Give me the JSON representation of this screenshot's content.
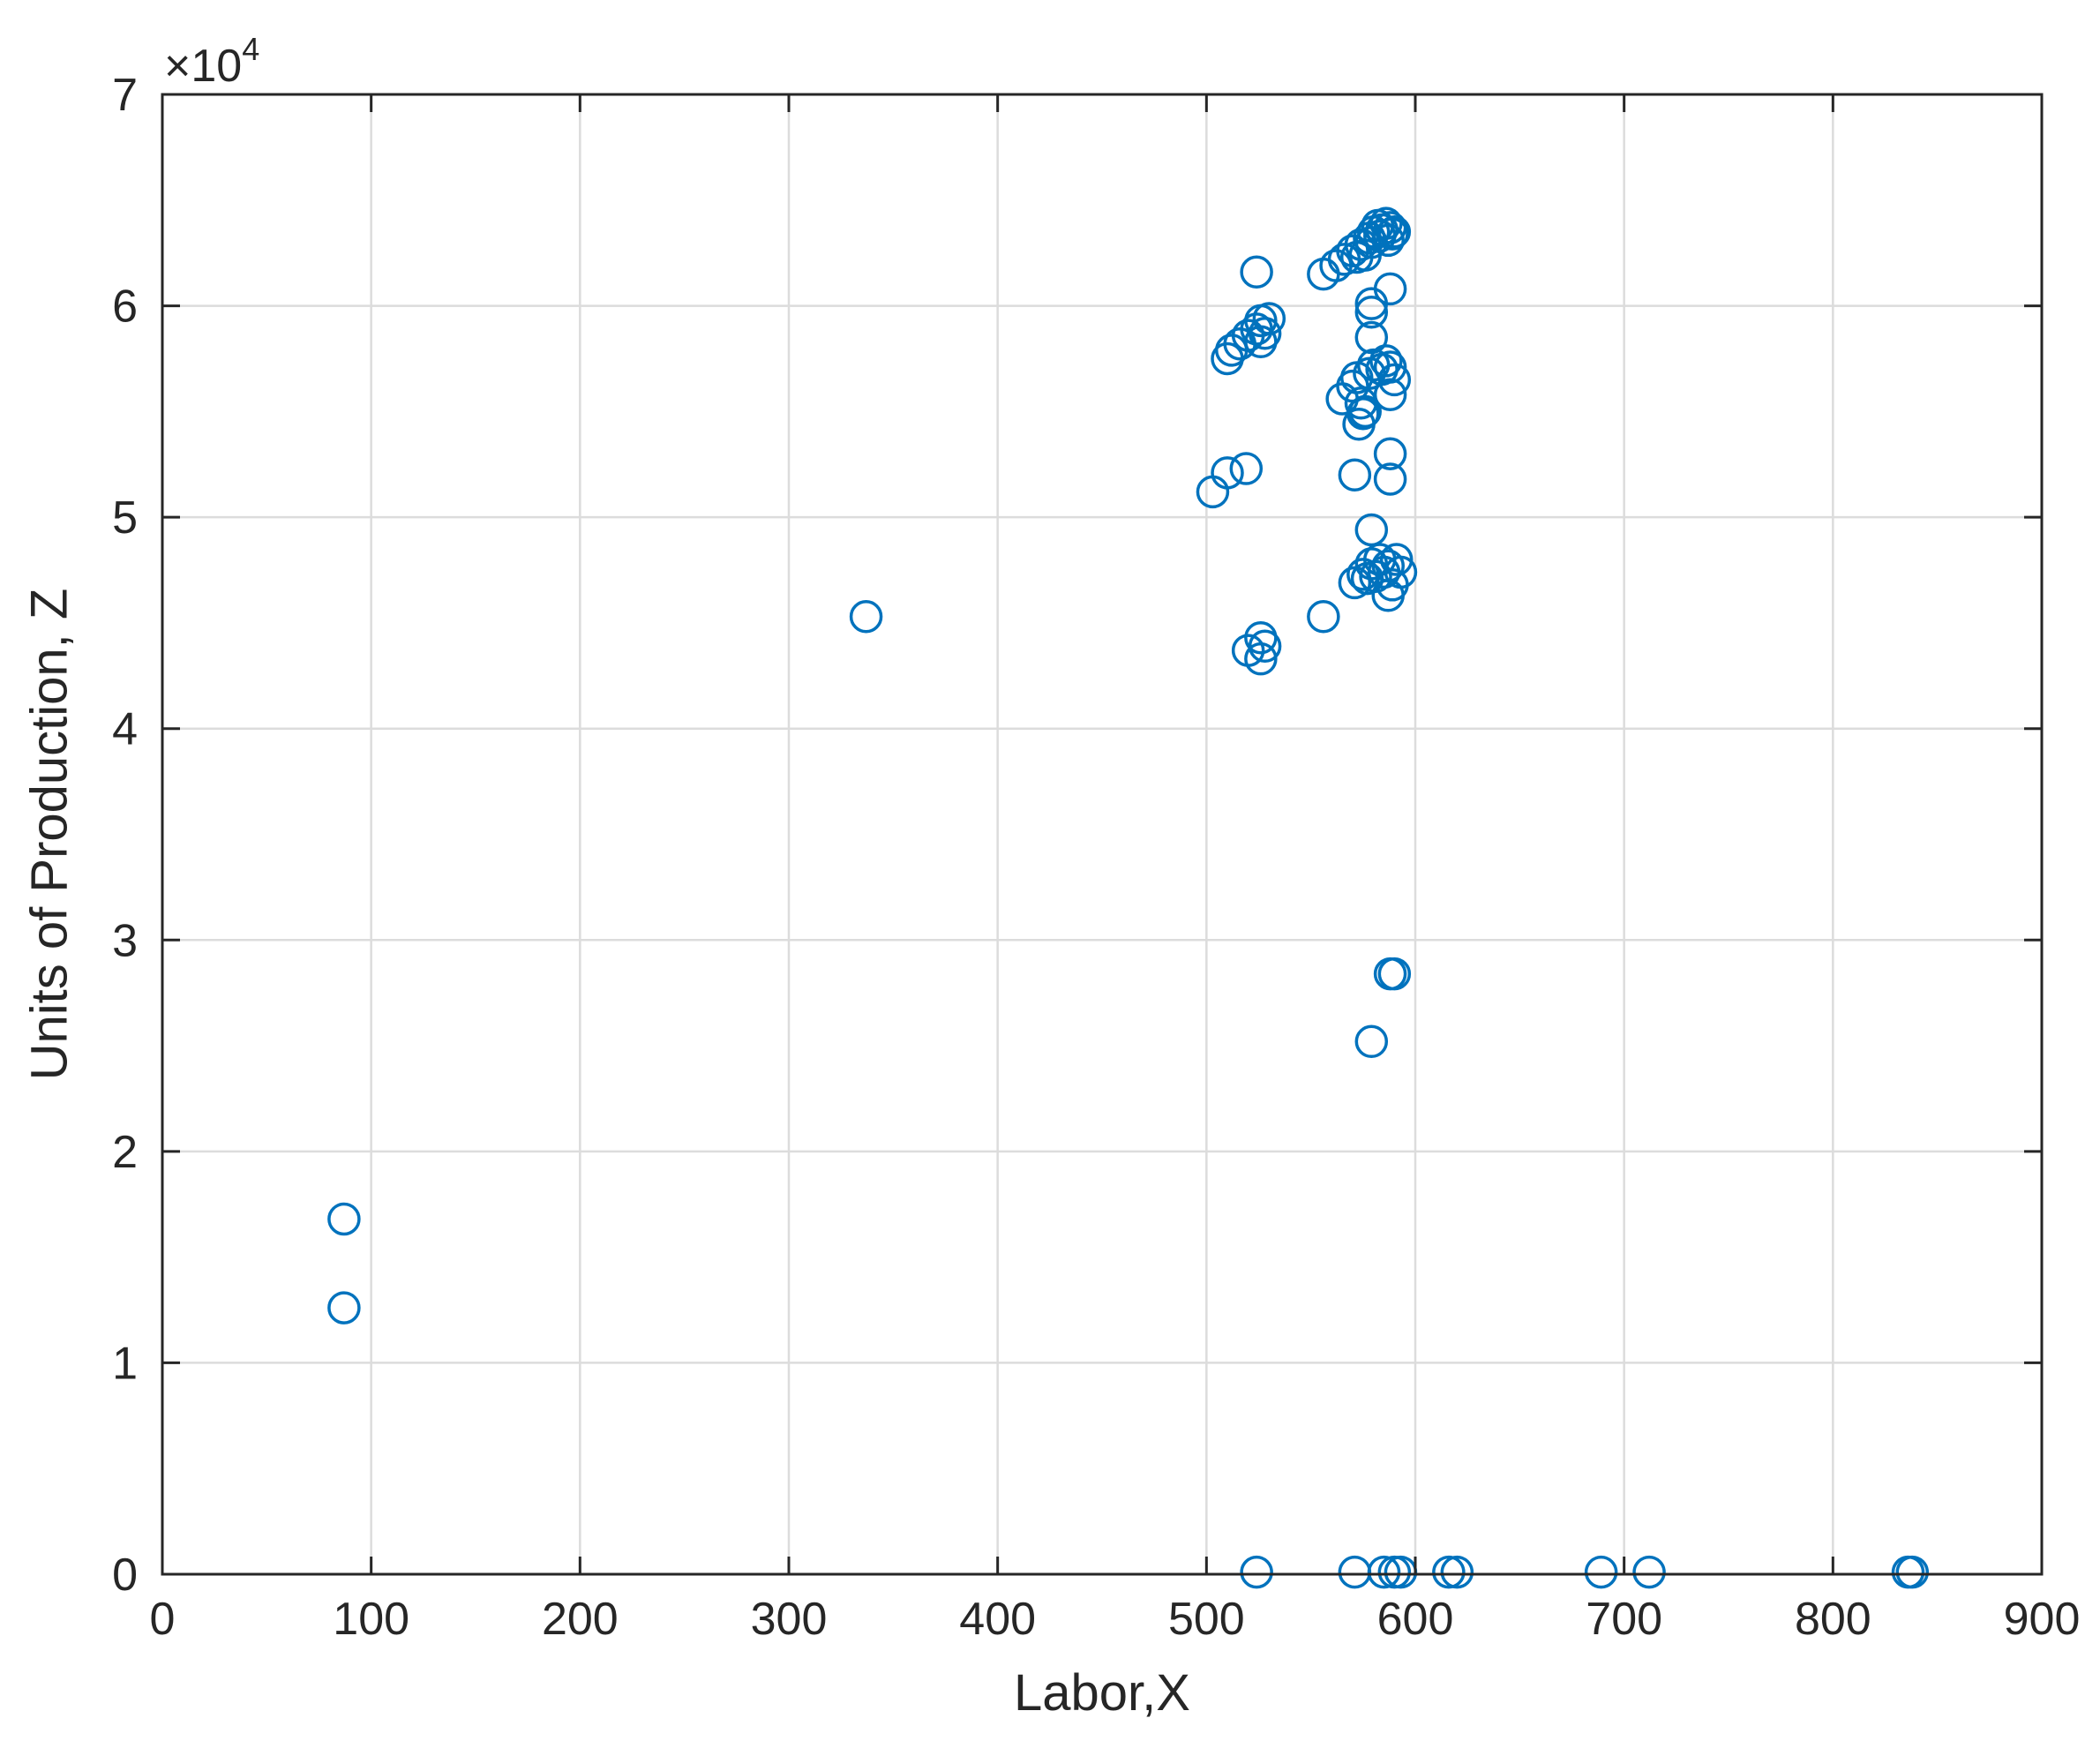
{
  "chart_data": {
    "type": "scatter",
    "title": "",
    "xlabel": "Labor,X",
    "ylabel": "Units of Production, Z",
    "xlim": [
      0,
      900
    ],
    "ylim": [
      0,
      70000
    ],
    "y_exponent_label": "×10",
    "y_exponent_power": "4",
    "y_scale_factor": 10000,
    "xticks": [
      0,
      100,
      200,
      300,
      400,
      500,
      600,
      700,
      800,
      900
    ],
    "xtick_labels": [
      "0",
      "100",
      "200",
      "300",
      "400",
      "500",
      "600",
      "700",
      "800",
      "900"
    ],
    "yticks": [
      0,
      10000,
      20000,
      30000,
      40000,
      50000,
      60000,
      70000
    ],
    "ytick_labels": [
      "0",
      "1",
      "2",
      "3",
      "4",
      "5",
      "6",
      "7"
    ],
    "grid": true,
    "legend": "none",
    "marker": "circle-open",
    "marker_color": "#0072BD",
    "series": [
      {
        "points": [
          [
            87,
            16800
          ],
          [
            87,
            12600
          ],
          [
            337,
            45300
          ],
          [
            503,
            51200
          ],
          [
            510,
            52100
          ],
          [
            519,
            52300
          ],
          [
            510,
            57500
          ],
          [
            512,
            57900
          ],
          [
            516,
            58200
          ],
          [
            520,
            58600
          ],
          [
            524,
            58900
          ],
          [
            526,
            59300
          ],
          [
            530,
            59400
          ],
          [
            526,
            58300
          ],
          [
            528,
            58700
          ],
          [
            524,
            61600
          ],
          [
            556,
            61500
          ],
          [
            562,
            61900
          ],
          [
            566,
            62200
          ],
          [
            570,
            62600
          ],
          [
            574,
            62900
          ],
          [
            578,
            63200
          ],
          [
            580,
            63500
          ],
          [
            582,
            63800
          ],
          [
            584,
            63600
          ],
          [
            586,
            63900
          ],
          [
            588,
            63700
          ],
          [
            590,
            63500
          ],
          [
            576,
            62400
          ],
          [
            572,
            62300
          ],
          [
            579,
            63000
          ],
          [
            583,
            63300
          ],
          [
            587,
            63100
          ],
          [
            589,
            63400
          ],
          [
            588,
            60800
          ],
          [
            579,
            60100
          ],
          [
            579,
            59700
          ],
          [
            579,
            58500
          ],
          [
            565,
            55600
          ],
          [
            570,
            56200
          ],
          [
            572,
            56600
          ],
          [
            574,
            55400
          ],
          [
            576,
            55000
          ],
          [
            578,
            56800
          ],
          [
            580,
            57200
          ],
          [
            584,
            57000
          ],
          [
            586,
            57400
          ],
          [
            588,
            57100
          ],
          [
            590,
            56500
          ],
          [
            588,
            55800
          ],
          [
            573,
            54400
          ],
          [
            575,
            54900
          ],
          [
            588,
            53000
          ],
          [
            571,
            52000
          ],
          [
            588,
            51800
          ],
          [
            579,
            49400
          ],
          [
            571,
            46900
          ],
          [
            575,
            47300
          ],
          [
            579,
            47800
          ],
          [
            583,
            48000
          ],
          [
            587,
            47700
          ],
          [
            591,
            48000
          ],
          [
            593,
            47400
          ],
          [
            589,
            46800
          ],
          [
            587,
            46300
          ],
          [
            581,
            47200
          ],
          [
            577,
            47100
          ],
          [
            585,
            47400
          ],
          [
            556,
            45300
          ],
          [
            520,
            43700
          ],
          [
            526,
            44300
          ],
          [
            528,
            43900
          ],
          [
            526,
            43300
          ],
          [
            588,
            28400
          ],
          [
            590,
            28400
          ],
          [
            579,
            25200
          ],
          [
            524,
            100
          ],
          [
            571,
            100
          ],
          [
            585,
            100
          ],
          [
            590,
            100
          ],
          [
            593,
            100
          ],
          [
            616,
            100
          ],
          [
            620,
            100
          ],
          [
            689,
            100
          ],
          [
            712,
            100
          ],
          [
            836,
            100
          ],
          [
            838,
            100
          ]
        ]
      }
    ]
  }
}
